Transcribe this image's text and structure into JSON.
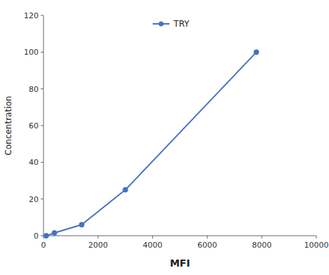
{
  "chart_data": {
    "type": "line",
    "x_label": "MFI",
    "y_label": "Concentration",
    "x": [
      100,
      400,
      1400,
      3000,
      7800
    ],
    "series": [
      {
        "name": "TRY",
        "color": "#4472C4",
        "marker": "circle",
        "values": [
          0,
          1.5,
          6,
          25,
          100
        ]
      }
    ],
    "xlim": [
      0,
      10000
    ],
    "ylim": [
      0,
      120
    ],
    "xticks": [
      0,
      2000,
      4000,
      6000,
      8000,
      10000
    ],
    "yticks": [
      0,
      20,
      40,
      60,
      80,
      100,
      120
    ],
    "grid": false,
    "legend": "upper center"
  }
}
